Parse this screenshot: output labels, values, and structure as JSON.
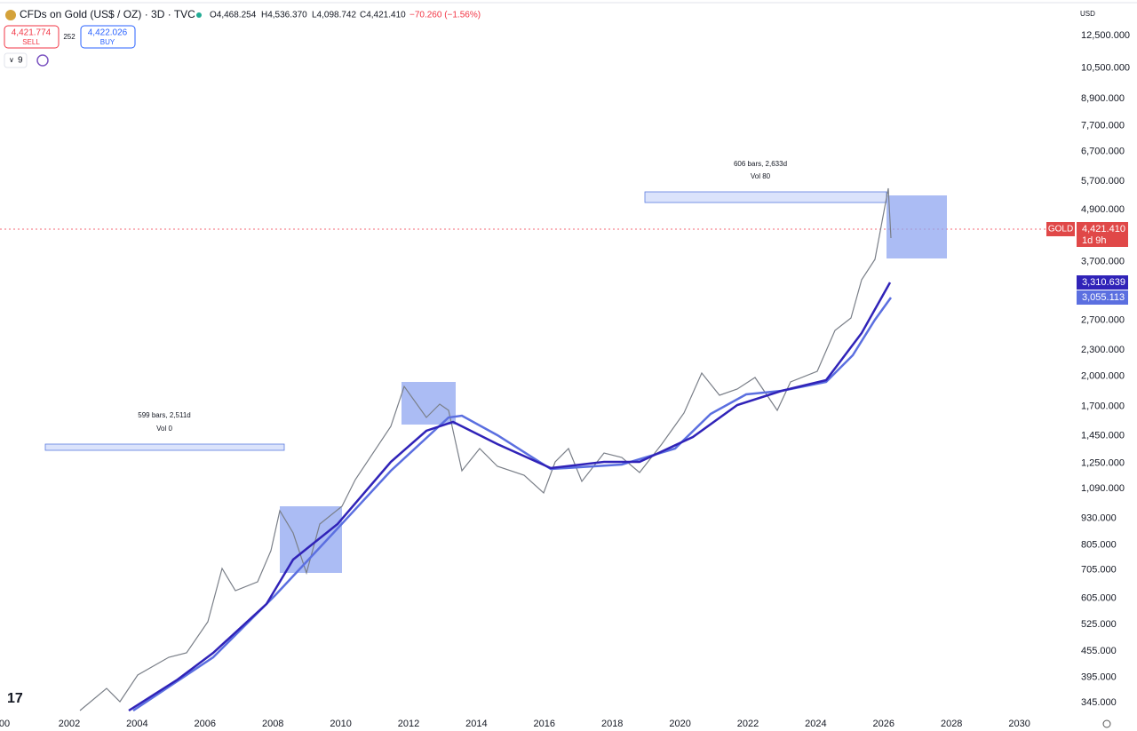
{
  "header": {
    "symbol": "CFDs on Gold (US$ / OZ) · 3D · TVC",
    "open": "O4,468.254",
    "high": "H4,536.370",
    "low": "L4,098.742",
    "close": "C4,421.410",
    "change": "−70.260 (−1.56%)"
  },
  "trade": {
    "sell_price": "4,421.774",
    "sell": "SELL",
    "spread": "252",
    "buy_price": "4,422.026",
    "buy": "BUY"
  },
  "indicators": {
    "count": "9"
  },
  "currency": "USD",
  "price_axis": [
    {
      "value": 12500,
      "label": "12,500.000"
    },
    {
      "value": 10500,
      "label": "10,500.000"
    },
    {
      "value": 8900,
      "label": "8,900.000"
    },
    {
      "value": 7700,
      "label": "7,700.000"
    },
    {
      "value": 6700,
      "label": "6,700.000"
    },
    {
      "value": 5700,
      "label": "5,700.000"
    },
    {
      "value": 4900,
      "label": "4,900.000"
    },
    {
      "value": 3700,
      "label": "3,700.000"
    },
    {
      "value": 2700,
      "label": "2,700.000"
    },
    {
      "value": 2300,
      "label": "2,300.000"
    },
    {
      "value": 2000,
      "label": "2,000.000"
    },
    {
      "value": 1700,
      "label": "1,700.000"
    },
    {
      "value": 1450,
      "label": "1,450.000"
    },
    {
      "value": 1250,
      "label": "1,250.000"
    },
    {
      "value": 1090,
      "label": "1,090.000"
    },
    {
      "value": 930,
      "label": "930.000"
    },
    {
      "value": 805,
      "label": "805.000"
    },
    {
      "value": 705,
      "label": "705.000"
    },
    {
      "value": 605,
      "label": "605.000"
    },
    {
      "value": 525,
      "label": "525.000"
    },
    {
      "value": 455,
      "label": "455.000"
    },
    {
      "value": 395,
      "label": "395.000"
    },
    {
      "value": 345,
      "label": "345.000"
    }
  ],
  "time_axis": [
    "00",
    "2002",
    "2004",
    "2006",
    "2008",
    "2010",
    "2012",
    "2014",
    "2016",
    "2018",
    "2020",
    "2022",
    "2024",
    "2026",
    "2028",
    "2030"
  ],
  "badges": {
    "gold_name": "GOLD",
    "gold_price": "4,421.410",
    "countdown": "1d 9h",
    "ma1": "3,310.639",
    "ma2": "3,055.113"
  },
  "annotations": [
    {
      "bars": "606 bars, 2,633d",
      "vol": "Vol 80"
    },
    {
      "bars": "599 bars, 2,511d",
      "vol": "Vol 0"
    }
  ]
}
